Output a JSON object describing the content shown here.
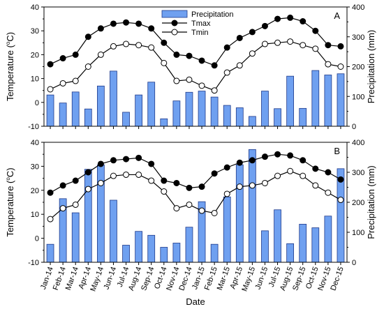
{
  "chart_data": {
    "type": "bar+line",
    "xlabel": "Date",
    "categories": [
      "Jan-14",
      "Feb-14",
      "Mar-14",
      "Apr-14",
      "May-14",
      "Jun-14",
      "Jul-14",
      "Aug-14",
      "Sep-14",
      "Oct-14",
      "Nov-14",
      "Dec-14",
      "Jan-15",
      "Feb-15",
      "Mar-15",
      "Apr-15",
      "May-15",
      "Jun-15",
      "Jul-15",
      "Aug-15",
      "Sep-15",
      "Oct-15",
      "Nov-15",
      "Dec-15"
    ],
    "left_axis": {
      "label_prefix": "Temperature (",
      "label_unit_sup": "o",
      "label_suffix": "C)",
      "ylim": [
        -10,
        40
      ],
      "ticks": [
        "-10",
        "0",
        "10",
        "20",
        "30",
        "40"
      ]
    },
    "right_axis": {
      "label": "Precipitation (mm)",
      "ylim": [
        0,
        400
      ],
      "ticks": [
        "0",
        "100",
        "200",
        "300",
        "400"
      ]
    },
    "legend": {
      "position": "top-center",
      "entries": [
        "Precipitation",
        "Tmax",
        "Tmin"
      ]
    },
    "colors": {
      "bar_fill": "#6fa0f0",
      "bar_stroke": "#1f3a8a",
      "tmax_fill": "#000000",
      "tmin_fill": "#ffffff",
      "line": "#000000"
    },
    "panels": [
      {
        "label": "A",
        "precipitation": [
          105,
          78,
          115,
          58,
          135,
          185,
          47,
          105,
          148,
          25,
          85,
          114,
          118,
          98,
          70,
          62,
          33,
          118,
          59,
          168,
          60,
          187,
          172,
          176
        ],
        "tmax": [
          16,
          18.5,
          20,
          27.5,
          31,
          33,
          33.5,
          33,
          31,
          25,
          20,
          19.5,
          17.5,
          15.5,
          23,
          27,
          29.5,
          32,
          35,
          35.5,
          34,
          30,
          24,
          23.5
        ],
        "tmin": [
          5.5,
          8,
          9,
          15,
          20,
          23.5,
          24.5,
          24,
          23,
          16.5,
          9,
          9.5,
          7,
          5,
          12.5,
          15.5,
          20.5,
          24.5,
          25,
          25.5,
          24,
          22.5,
          16,
          15
        ]
      },
      {
        "label": "B",
        "precipitation": [
          60,
          212,
          165,
          310,
          325,
          207,
          57,
          103,
          90,
          50,
          64,
          117,
          202,
          60,
          218,
          325,
          376,
          105,
          175,
          62,
          127,
          115,
          154,
          312
        ],
        "tmax": [
          19,
          22,
          24,
          27.5,
          31,
          32.5,
          33,
          33.5,
          31,
          24,
          23,
          21,
          21.5,
          27,
          29.5,
          31.5,
          32.5,
          34,
          35,
          34.5,
          32.5,
          29,
          27.5,
          24.5
        ],
        "tmin": [
          8,
          12.5,
          14,
          20.5,
          23,
          26,
          26.5,
          26.5,
          24,
          19.5,
          12.5,
          14,
          11.5,
          10.5,
          18.5,
          21.5,
          22,
          23,
          26,
          28,
          26,
          22,
          19,
          16
        ]
      }
    ]
  }
}
